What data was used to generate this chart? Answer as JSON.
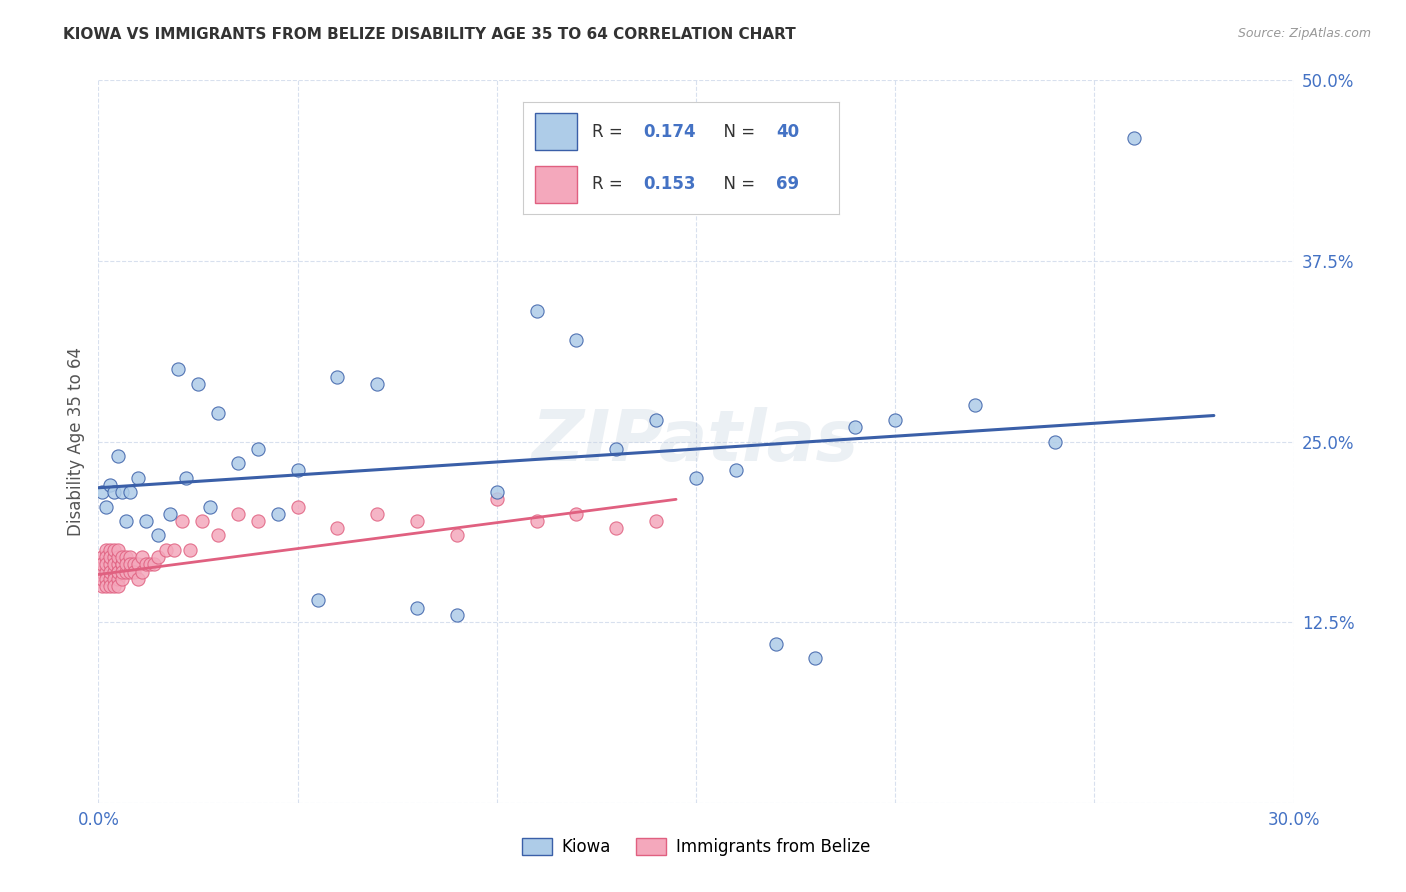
{
  "title": "KIOWA VS IMMIGRANTS FROM BELIZE DISABILITY AGE 35 TO 64 CORRELATION CHART",
  "source": "Source: ZipAtlas.com",
  "ylabel": "Disability Age 35 to 64",
  "xmin": 0.0,
  "xmax": 0.3,
  "ymin": 0.0,
  "ymax": 0.5,
  "watermark": "ZIPatlas",
  "legend_R1": "0.174",
  "legend_N1": "40",
  "legend_R2": "0.153",
  "legend_N2": "69",
  "color_blue_fill": "#AECCE8",
  "color_pink_fill": "#F4A8BC",
  "color_blue_line": "#3A5FA8",
  "color_pink_line": "#E06080",
  "color_blue_text": "#4472C4",
  "color_axis_text": "#4472C4",
  "kiowa_x": [
    0.001,
    0.002,
    0.003,
    0.004,
    0.005,
    0.006,
    0.007,
    0.008,
    0.01,
    0.012,
    0.015,
    0.018,
    0.02,
    0.022,
    0.025,
    0.028,
    0.03,
    0.035,
    0.04,
    0.045,
    0.05,
    0.055,
    0.06,
    0.07,
    0.08,
    0.09,
    0.1,
    0.11,
    0.12,
    0.13,
    0.14,
    0.15,
    0.16,
    0.17,
    0.18,
    0.19,
    0.2,
    0.22,
    0.24,
    0.26
  ],
  "kiowa_y": [
    0.215,
    0.205,
    0.22,
    0.215,
    0.24,
    0.215,
    0.195,
    0.215,
    0.225,
    0.195,
    0.185,
    0.2,
    0.3,
    0.225,
    0.29,
    0.205,
    0.27,
    0.235,
    0.245,
    0.2,
    0.23,
    0.14,
    0.295,
    0.29,
    0.135,
    0.13,
    0.215,
    0.34,
    0.32,
    0.245,
    0.265,
    0.225,
    0.23,
    0.11,
    0.1,
    0.26,
    0.265,
    0.275,
    0.25,
    0.46
  ],
  "belize_x": [
    0.001,
    0.001,
    0.001,
    0.001,
    0.001,
    0.002,
    0.002,
    0.002,
    0.002,
    0.002,
    0.002,
    0.003,
    0.003,
    0.003,
    0.003,
    0.003,
    0.003,
    0.004,
    0.004,
    0.004,
    0.004,
    0.004,
    0.004,
    0.005,
    0.005,
    0.005,
    0.005,
    0.005,
    0.005,
    0.005,
    0.006,
    0.006,
    0.006,
    0.006,
    0.006,
    0.007,
    0.007,
    0.007,
    0.008,
    0.008,
    0.008,
    0.009,
    0.009,
    0.01,
    0.01,
    0.011,
    0.011,
    0.012,
    0.013,
    0.014,
    0.015,
    0.017,
    0.019,
    0.021,
    0.023,
    0.026,
    0.03,
    0.035,
    0.04,
    0.05,
    0.06,
    0.07,
    0.08,
    0.09,
    0.1,
    0.11,
    0.12,
    0.13,
    0.14
  ],
  "belize_y": [
    0.17,
    0.16,
    0.15,
    0.165,
    0.155,
    0.175,
    0.16,
    0.17,
    0.155,
    0.165,
    0.15,
    0.165,
    0.175,
    0.155,
    0.16,
    0.17,
    0.15,
    0.16,
    0.17,
    0.155,
    0.165,
    0.175,
    0.15,
    0.16,
    0.165,
    0.17,
    0.155,
    0.15,
    0.175,
    0.16,
    0.165,
    0.165,
    0.155,
    0.17,
    0.16,
    0.17,
    0.16,
    0.165,
    0.17,
    0.16,
    0.165,
    0.165,
    0.16,
    0.165,
    0.155,
    0.17,
    0.16,
    0.165,
    0.165,
    0.165,
    0.17,
    0.175,
    0.175,
    0.195,
    0.175,
    0.195,
    0.185,
    0.2,
    0.195,
    0.205,
    0.19,
    0.2,
    0.195,
    0.185,
    0.21,
    0.195,
    0.2,
    0.19,
    0.195
  ],
  "kiowa_line_x": [
    0.0,
    0.28
  ],
  "kiowa_line_y": [
    0.218,
    0.268
  ],
  "belize_line_x": [
    0.0,
    0.145
  ],
  "belize_line_y": [
    0.158,
    0.21
  ]
}
